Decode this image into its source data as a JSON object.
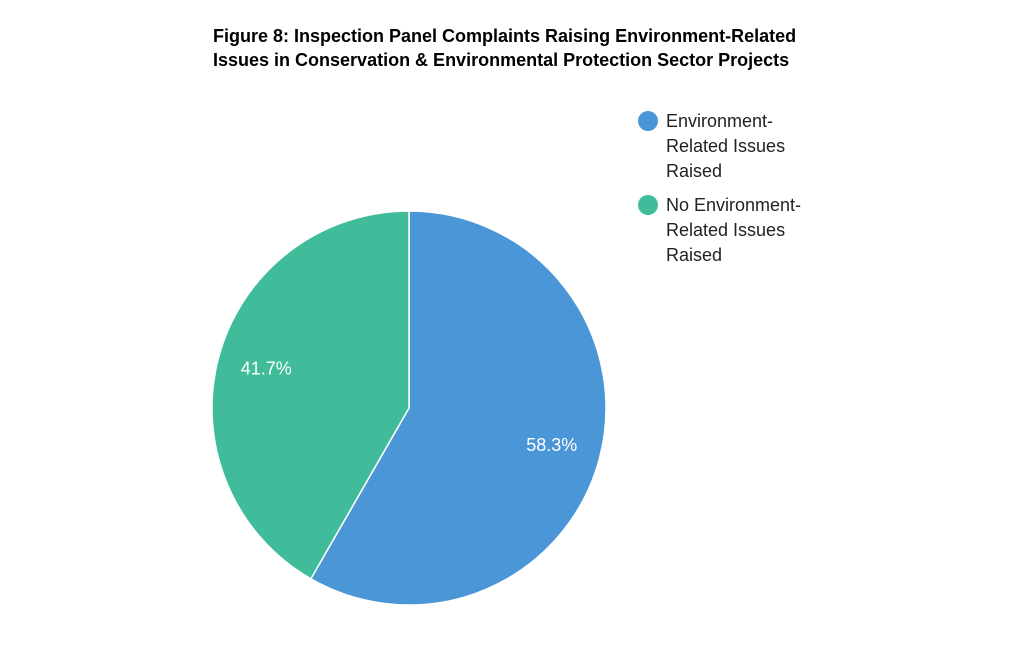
{
  "chart_data": {
    "type": "pie",
    "title": "Figure 8: Inspection Panel Complaints Raising Environment-Related Issues in Conservation & Environmental Protection Sector Projects",
    "categories": [
      "Environment-Related Issues Raised",
      "No Environment-Related Issues Raised"
    ],
    "values": [
      58.3,
      41.7
    ],
    "value_labels": [
      "58.3%",
      "41.7%"
    ],
    "colors": [
      "#4a96d6",
      "#40bc9b"
    ],
    "legend": "right"
  }
}
